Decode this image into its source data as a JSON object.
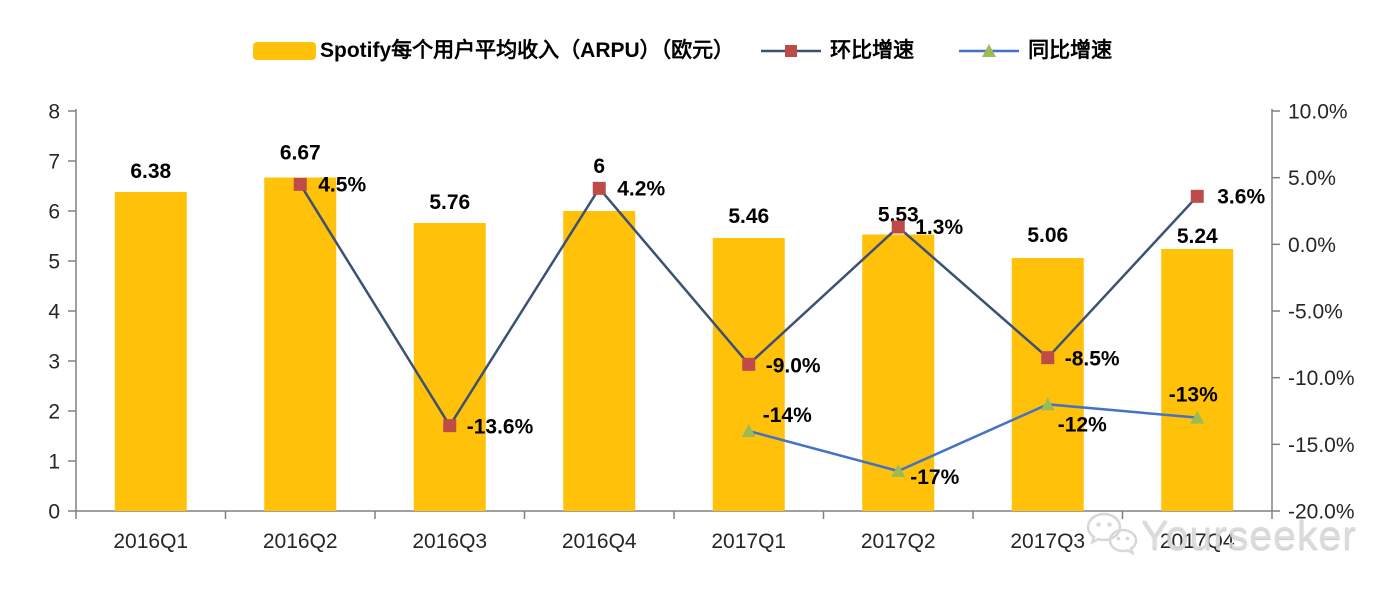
{
  "legend": [
    {
      "label": "Spotify每个用户平均收入（ARPU）（欧元）",
      "swatch": "bar",
      "color": "#FFC10A"
    },
    {
      "label": "环比增速",
      "swatch": "line-square",
      "line_color": "#3C5173",
      "marker_color": "#BE4B48"
    },
    {
      "label": "同比增速",
      "swatch": "line-triangle",
      "line_color": "#4472C4",
      "marker_color": "#9BBB59"
    }
  ],
  "watermark": {
    "text": "Yourseeker",
    "icon": "wechat-icon"
  },
  "chart_data": {
    "type": "bar+line",
    "title": "Spotify每个用户平均收入（ARPU）（欧元）",
    "categories": [
      "2016Q1",
      "2016Q2",
      "2016Q3",
      "2016Q4",
      "2017Q1",
      "2017Q2",
      "2017Q3",
      "2017Q4"
    ],
    "grid": false,
    "legend_position": "top",
    "left_axis": {
      "min": 0,
      "max": 8,
      "tick_values": [
        0,
        1,
        2,
        3,
        4,
        5,
        6,
        7,
        8
      ],
      "tick_labels": [
        "0",
        "1",
        "2",
        "3",
        "4",
        "5",
        "6",
        "7",
        "8"
      ]
    },
    "right_axis": {
      "min": -20,
      "max": 10,
      "tick_values": [
        10,
        5,
        0,
        -5,
        -10,
        -15,
        -20
      ],
      "tick_labels": [
        "10.0%",
        "5.0%",
        "0.0%",
        "-5.0%",
        "-10.0%",
        "-15.0%",
        "-20.0%"
      ]
    },
    "series": [
      {
        "name": "Spotify每个用户平均收入（ARPU）（欧元）",
        "type": "bar",
        "axis": "left",
        "color": "#FFC10A",
        "values": [
          6.38,
          6.67,
          5.76,
          6,
          5.46,
          5.53,
          5.06,
          5.24
        ],
        "labels": [
          "6.38",
          "6.67",
          "5.76",
          "6",
          "5.46",
          "5.53",
          "5.06",
          "5.24"
        ],
        "label_dy": [
          -14,
          -18,
          -14,
          -38,
          -15,
          -13,
          -16,
          -6
        ]
      },
      {
        "name": "环比增速",
        "type": "line",
        "axis": "right",
        "line_color": "#3C5173",
        "marker": "square",
        "marker_color": "#BE4B48",
        "values": [
          null,
          4.5,
          -13.6,
          4.2,
          -9.0,
          1.3,
          -8.5,
          3.6
        ],
        "labels": [
          null,
          {
            "text": "4.5%",
            "dx": 18,
            "dy": 7,
            "anchor": "start"
          },
          {
            "text": "-13.6%",
            "dx": 17,
            "dy": 8,
            "anchor": "start"
          },
          {
            "text": "4.2%",
            "dx": 18,
            "dy": 7,
            "anchor": "start"
          },
          {
            "text": "-9.0%",
            "dx": 17,
            "dy": 8,
            "anchor": "start"
          },
          {
            "text": "1.3%",
            "dx": 17,
            "dy": 7,
            "anchor": "start"
          },
          {
            "text": "-8.5%",
            "dx": 17,
            "dy": 8,
            "anchor": "start"
          },
          {
            "text": "3.6%",
            "dx": 20,
            "dy": 7,
            "anchor": "start"
          }
        ]
      },
      {
        "name": "同比增速",
        "type": "line",
        "axis": "right",
        "line_color": "#4472C4",
        "marker": "triangle",
        "marker_color": "#9BBB59",
        "values": [
          null,
          null,
          null,
          null,
          -14,
          -17,
          -12,
          -13
        ],
        "labels": [
          null,
          null,
          null,
          null,
          {
            "text": "-14%",
            "dx": 14,
            "dy": -9,
            "anchor": "start"
          },
          {
            "text": "-17%",
            "dx": 12,
            "dy": 13,
            "anchor": "start"
          },
          {
            "text": "-12%",
            "dx": 10,
            "dy": 27,
            "anchor": "start"
          },
          {
            "text": "-13%",
            "dx": -4,
            "dy": -16,
            "anchor": "middle"
          }
        ]
      }
    ],
    "style": {
      "axis_color": "#808080",
      "tick_text_color": "#262626",
      "data_label_color": "#000000"
    }
  }
}
